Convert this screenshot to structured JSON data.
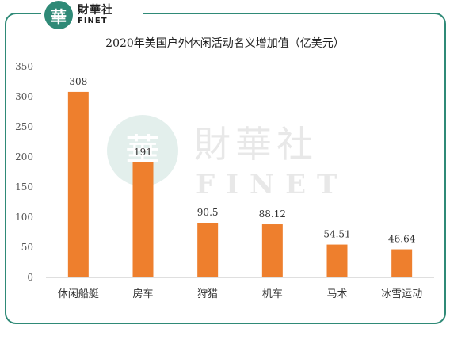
{
  "brand": {
    "logo_glyph": "華",
    "name_cn": "財華社",
    "name_en": "FINET",
    "color": "#2f8a77"
  },
  "chart_data": {
    "type": "bar",
    "title": "2020年美国户外休闲活动名义增加值（亿美元）",
    "xlabel": "",
    "ylabel": "",
    "categories": [
      "休闲船艇",
      "房车",
      "狩猎",
      "机车",
      "马术",
      "冰雪运动"
    ],
    "values": [
      308,
      191,
      90.5,
      88.12,
      54.51,
      46.64
    ],
    "value_labels": [
      "308",
      "191",
      "90.5",
      "88.12",
      "54.51",
      "46.64"
    ],
    "ylim": [
      0,
      350
    ],
    "yticks": [
      0,
      50,
      100,
      150,
      200,
      250,
      300,
      350
    ],
    "bar_color": "#ee7f2d",
    "grid": false,
    "legend": "none"
  }
}
